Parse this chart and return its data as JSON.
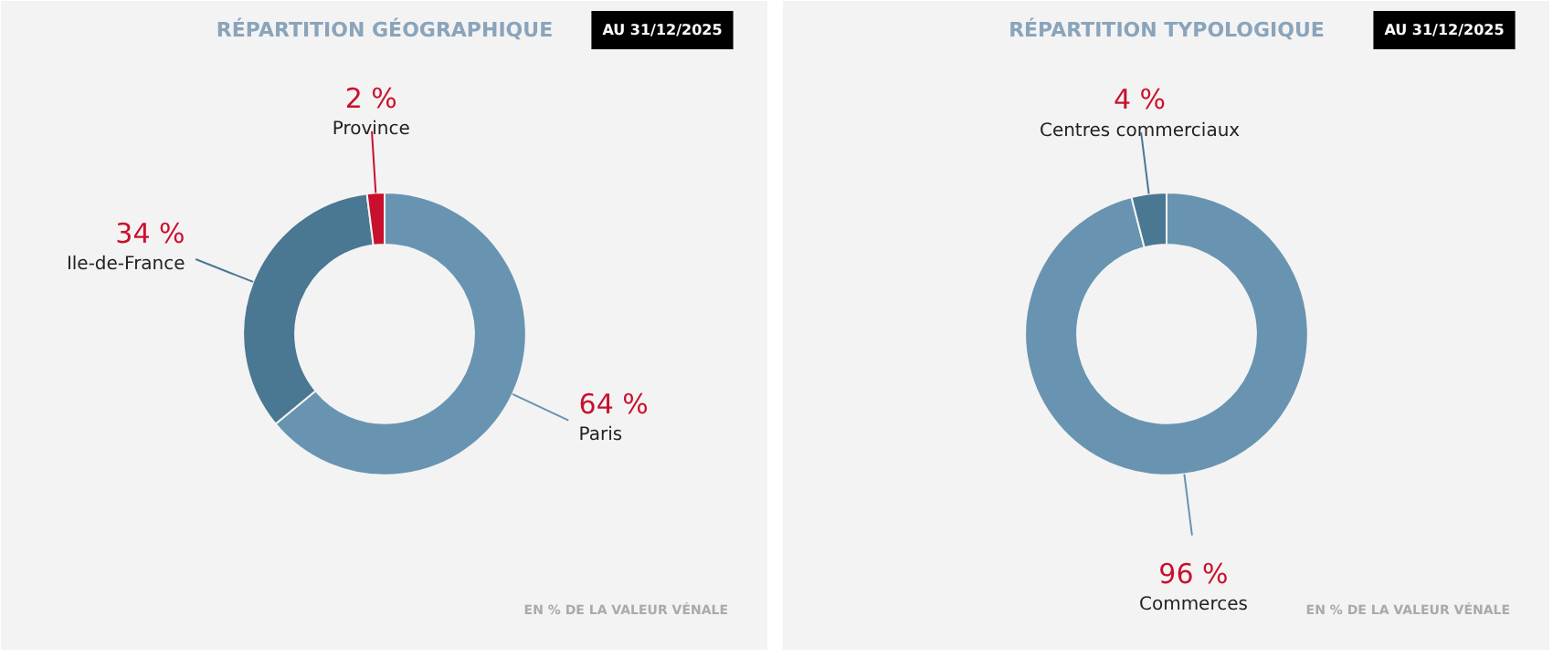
{
  "chart_data": [
    {
      "type": "donut",
      "title": "RÉPARTITION GÉOGRAPHIQUE",
      "subtitle": "AU 31/12/2025",
      "categories": [
        "Paris",
        "Ile-de-France",
        "Province"
      ],
      "values": [
        64,
        34,
        2
      ],
      "colors": [
        "#6894b1",
        "#4a7791",
        "#c8102e"
      ],
      "value_labels": [
        "64 %",
        "34 %",
        "2 %"
      ],
      "annotations": [
        "EN % DE LA VALEUR VÉNALE"
      ]
    },
    {
      "type": "donut",
      "title": "RÉPARTITION TYPOLOGIQUE",
      "subtitle": "AU 31/12/2025",
      "categories": [
        "Commerces",
        "Centres commerciaux"
      ],
      "values": [
        96,
        4
      ],
      "colors": [
        "#6894b1",
        "#4a7791"
      ],
      "value_labels": [
        "96 %",
        "4 %"
      ],
      "annotations": [
        "EN % DE LA VALEUR VÉNALE"
      ]
    }
  ]
}
